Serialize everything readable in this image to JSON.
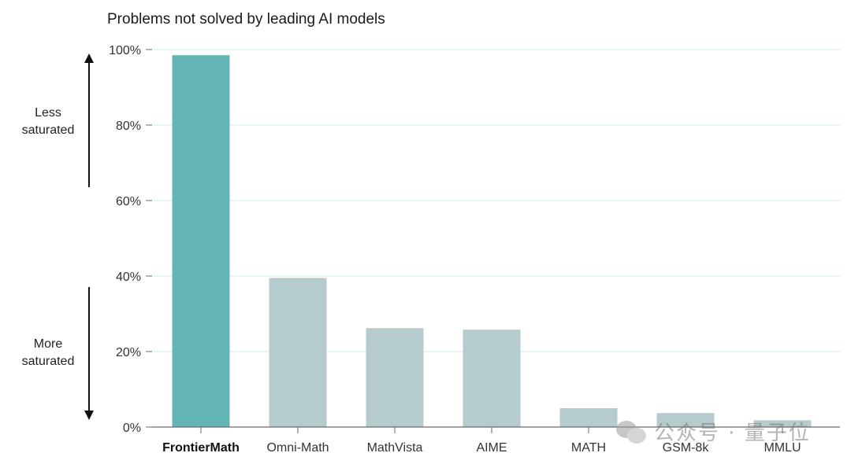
{
  "chart_data": {
    "type": "bar",
    "title": "Problems not solved by leading AI models",
    "xlabel": "",
    "ylabel": "",
    "categories": [
      "FrontierMath",
      "Omni-Math",
      "MathVista",
      "AIME",
      "MATH",
      "GSM-8k",
      "MMLU"
    ],
    "values": [
      98.5,
      39.5,
      26.2,
      25.8,
      5.0,
      3.7,
      1.8
    ],
    "ylim": [
      0,
      100
    ],
    "y_ticks": [
      "0%",
      "20%",
      "40%",
      "60%",
      "80%",
      "100%"
    ],
    "y_tick_values": [
      0,
      20,
      40,
      60,
      80,
      100
    ],
    "grid": true,
    "highlight_index": 0,
    "colors": {
      "highlight": "#64b5b6",
      "bar": "#b6cbcd",
      "grid": "#d6e8e8",
      "axis": "#6a6a6a",
      "arrow": "#111111"
    },
    "annotations": {
      "top": "Less saturated",
      "top_lines": [
        "Less",
        "saturated"
      ],
      "bottom": "More saturated",
      "bottom_lines": [
        "More",
        "saturated"
      ]
    }
  },
  "watermark": {
    "icon": "wechat-icon",
    "text": "公众号 · 量子位"
  }
}
